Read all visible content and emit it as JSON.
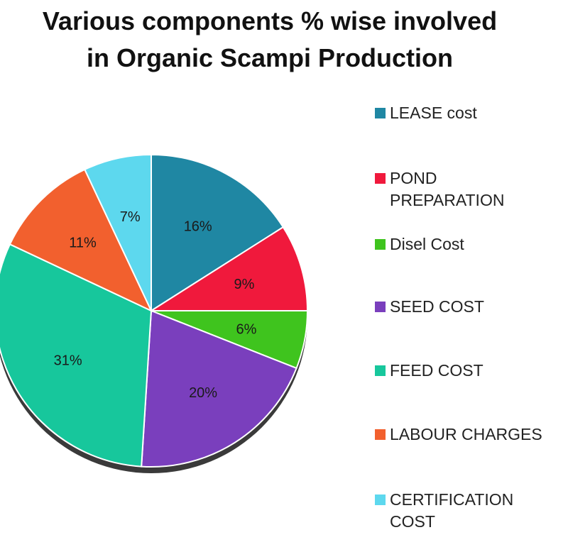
{
  "chart_data": {
    "type": "pie",
    "title": [
      "Various components % wise involved",
      "in Organic Scampi Production"
    ],
    "slices": [
      {
        "label": "LEASE cost",
        "value": 16,
        "display": "16%",
        "color": "#1f87a3"
      },
      {
        "label": "POND PREPARATION",
        "value": 9,
        "display": "9%",
        "color": "#f0193c"
      },
      {
        "label": "Disel Cost",
        "value": 6,
        "display": "6%",
        "color": "#3fc41e"
      },
      {
        "label": "SEED COST",
        "value": 20,
        "display": "20%",
        "color": "#7a3fbd"
      },
      {
        "label": "FEED COST",
        "value": 31,
        "display": "31%",
        "color": "#17c79c"
      },
      {
        "label": "LABOUR CHARGES",
        "value": 11,
        "display": "11%",
        "color": "#f2602e"
      },
      {
        "label": "CERTIFICATION COST",
        "value": 7,
        "display": "7%",
        "color": "#5dd8ee"
      }
    ],
    "legend_position": "right"
  },
  "legend_lines": [
    [
      "LEASE cost"
    ],
    [
      "POND",
      "PREPARATION"
    ],
    [
      "Disel Cost"
    ],
    [
      "SEED COST"
    ],
    [
      "FEED COST"
    ],
    [
      "LABOUR CHARGES"
    ],
    [
      "CERTIFICATION",
      "COST"
    ]
  ]
}
